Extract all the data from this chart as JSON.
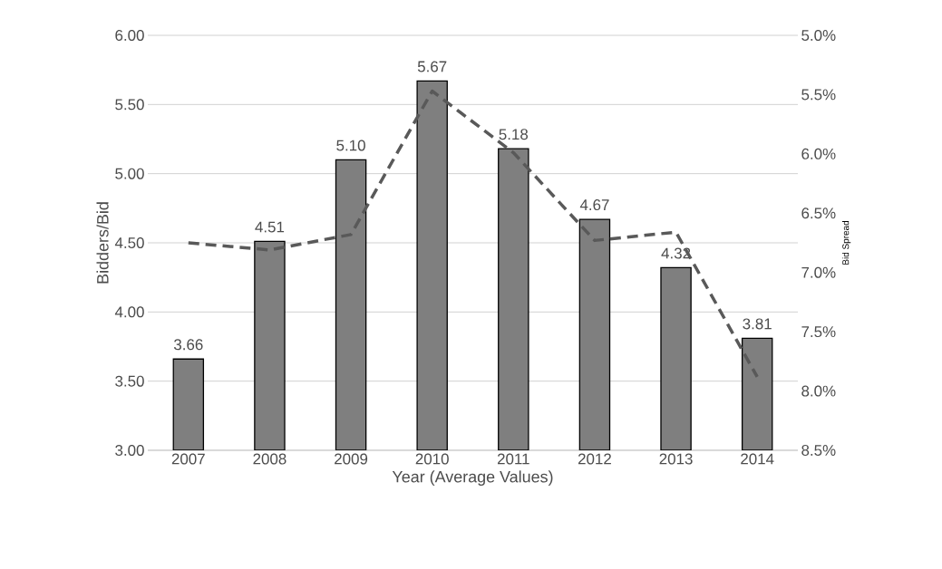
{
  "chart_data": {
    "type": "bar",
    "xlabel": "Year (Average Values)",
    "ylabel": "Bidders/Bid",
    "y2label": "Bid Spread",
    "categories": [
      "2007",
      "2008",
      "2009",
      "2010",
      "2011",
      "2012",
      "2013",
      "2014"
    ],
    "series": [
      {
        "color": "#7f7f7f",
        "values": [
          3.66,
          4.51,
          5.1,
          5.67,
          5.18,
          4.67,
          4.32,
          3.81
        ],
        "value_labels": [
          "3.66",
          "4.51",
          "5.10",
          "5.67",
          "5.18",
          "4.67",
          "4.32",
          "3.81"
        ]
      },
      {
        "type": "line",
        "axis": "y2",
        "color": "#595959",
        "line_style": "dashed",
        "values": [
          6.75,
          6.81,
          6.68,
          5.47,
          5.99,
          6.73,
          6.66,
          7.88
        ]
      }
    ],
    "ylim": [
      3,
      6
    ],
    "yticks": [
      {
        "value": 3,
        "label": "3.00"
      },
      {
        "value": 3.5,
        "label": "3.50"
      },
      {
        "value": 4,
        "label": "4.00"
      },
      {
        "value": 4.5,
        "label": "4.50"
      },
      {
        "value": 5,
        "label": "5.00"
      },
      {
        "value": 5.5,
        "label": "5.50"
      },
      {
        "value": 6,
        "label": "6.00"
      }
    ],
    "y2lim": [
      8.5,
      5.0
    ],
    "y2ticks": [
      {
        "value": 5.0,
        "label": "5.0%"
      },
      {
        "value": 5.5,
        "label": "5.5%"
      },
      {
        "value": 6.0,
        "label": "6.0%"
      },
      {
        "value": 6.5,
        "label": "6.5%"
      },
      {
        "value": 7.0,
        "label": "7.0%"
      },
      {
        "value": 7.5,
        "label": "7.5%"
      },
      {
        "value": 8.0,
        "label": "8.0%"
      },
      {
        "value": 8.5,
        "label": "8.5%"
      }
    ],
    "grid": "y"
  }
}
